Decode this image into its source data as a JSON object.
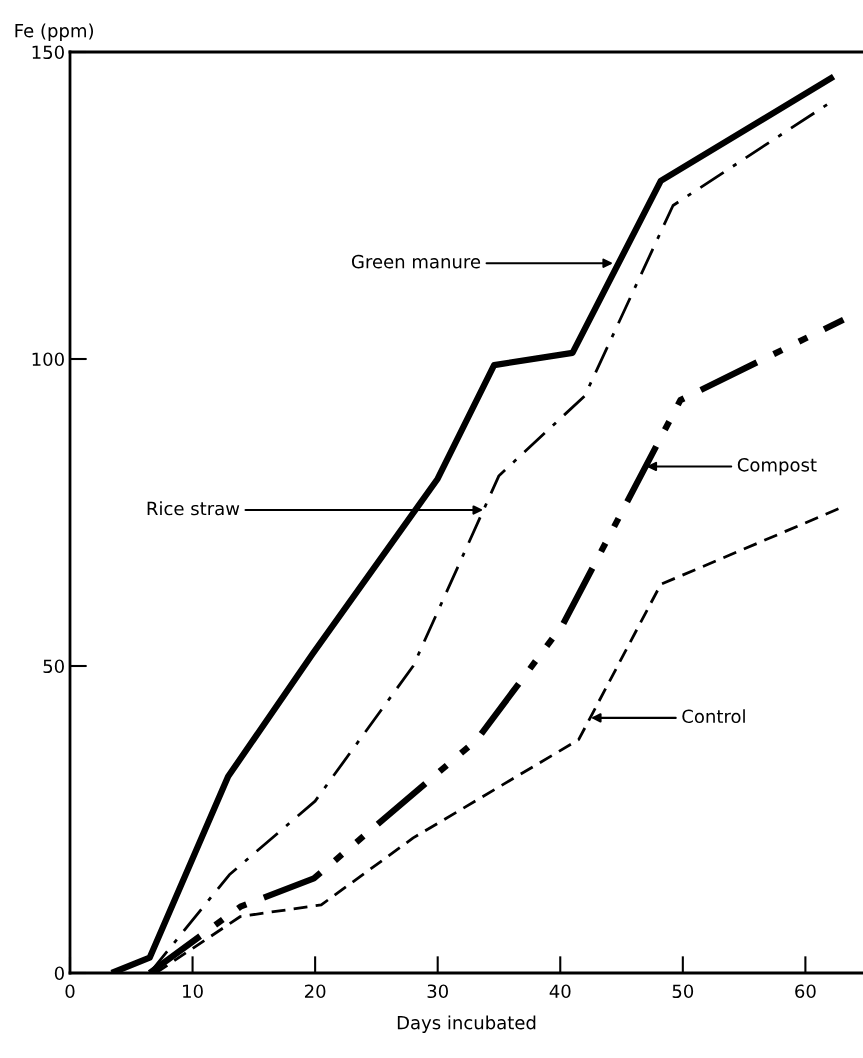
{
  "chart_data": {
    "type": "line",
    "ylabel": "Fe (ppm)",
    "xlabel": "Days incubated",
    "xlim": [
      0,
      64.7
    ],
    "ylim": [
      0,
      150
    ],
    "xticks": [
      0,
      10,
      20,
      30,
      40,
      50,
      60
    ],
    "yticks": [
      0,
      50,
      100,
      150
    ],
    "grid": false,
    "legend": false,
    "marker": "none",
    "series": [
      {
        "color": "#000000",
        "line_style": "solid",
        "x": [
          3.4,
          6.5,
          12.9,
          19.8,
          30,
          34.6,
          41,
          48.2,
          62.3
        ],
        "values": [
          0,
          2.5,
          32,
          52,
          80.5,
          99,
          101,
          129,
          146
        ]
      },
      {
        "color": "#000000",
        "line_style": "dashdot",
        "x": [
          6.5,
          13,
          20,
          28,
          35,
          42,
          49.2,
          62.2
        ],
        "values": [
          0,
          16,
          28,
          50,
          81,
          94,
          125,
          142
        ]
      },
      {
        "color": "#000000",
        "line_style": "dashdotdot",
        "x": [
          6.5,
          13.9,
          19.9,
          33.2,
          40.2,
          49.8,
          63.1
        ],
        "values": [
          0,
          10.8,
          15.4,
          38,
          56.7,
          93.3,
          106.4
        ]
      },
      {
        "color": "#000000",
        "line_style": "dashed",
        "x": [
          7,
          13.9,
          20.5,
          28,
          41.5,
          48.2,
          62.7
        ],
        "values": [
          0,
          9.2,
          11.1,
          22,
          38,
          63.3,
          75.6
        ]
      }
    ],
    "annotations": [
      {
        "text": "Green manure",
        "x": 44.3,
        "y": 115.6
      },
      {
        "text": "Rice straw",
        "x": 33.7,
        "y": 75.4
      },
      "Compost",
      "Control"
    ]
  }
}
